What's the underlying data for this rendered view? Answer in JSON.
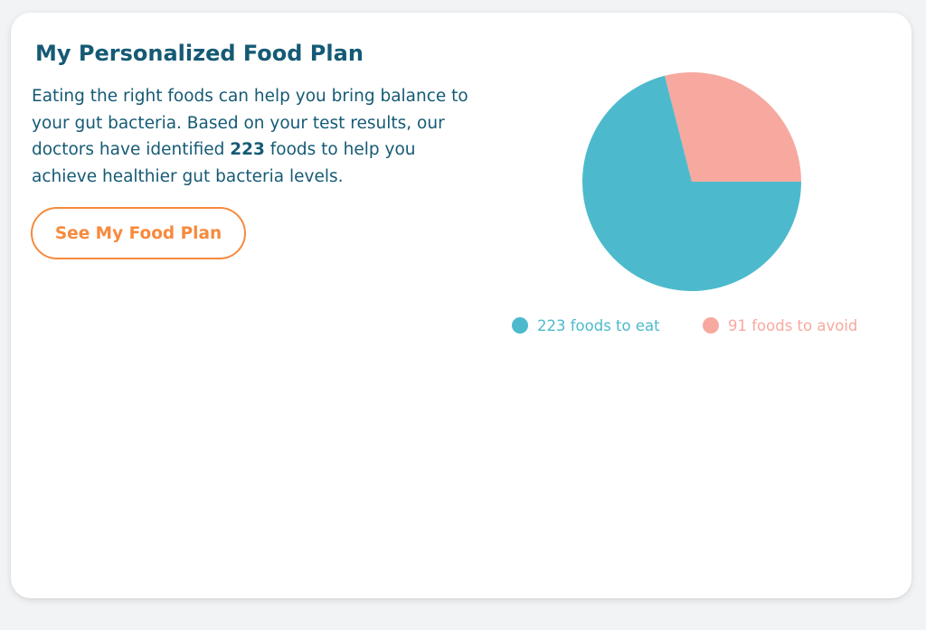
{
  "card": {
    "title": "My Personalized Food Plan",
    "description_part1": "Eating the right foods can help you bring balance to your gut bacteria. Based on your test results, our doctors have identified ",
    "highlight_count": "223",
    "description_part2": " foods to help you achieve healthier gut bacteria levels.",
    "cta_label": "See My Food Plan"
  },
  "colors": {
    "heading": "#155a75",
    "accent_orange": "#f68a3d",
    "eat": "#4cbacc",
    "avoid": "#f7a99f"
  },
  "chart_data": {
    "type": "pie",
    "slices": [
      {
        "label": "223 foods to eat",
        "value": 223,
        "color": "#4cbacc"
      },
      {
        "label": "91 foods to avoid",
        "value": 91,
        "color": "#f7a99f"
      }
    ],
    "legend_position": "bottom"
  }
}
